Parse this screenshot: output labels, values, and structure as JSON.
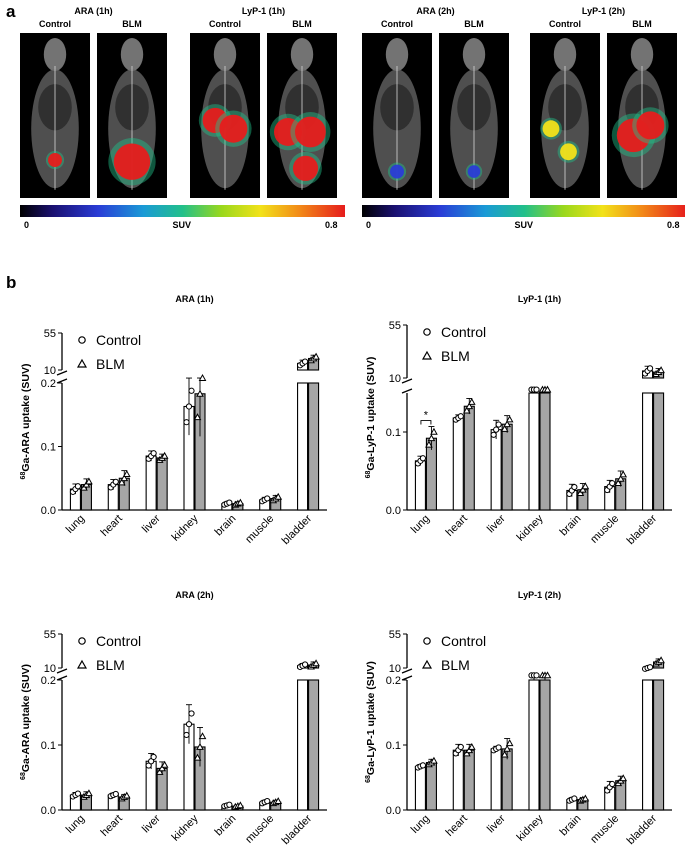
{
  "panel_a_label": "a",
  "panel_b_label": "b",
  "imaging": {
    "groups": [
      {
        "title": "ARA (1h)",
        "sub": [
          "Control",
          "BLM"
        ]
      },
      {
        "title": "LyP-1 (1h)",
        "sub": [
          "Control",
          "BLM"
        ]
      },
      {
        "title": "ARA (2h)",
        "sub": [
          "Control",
          "BLM"
        ]
      },
      {
        "title": "LyP-1 (2h)",
        "sub": [
          "Control",
          "BLM"
        ]
      }
    ],
    "colorbars": [
      {
        "min": "0",
        "label": "SUV",
        "max": "0.8"
      },
      {
        "min": "0",
        "label": "SUV",
        "max": "0.8"
      }
    ]
  },
  "colors": {
    "control_bar": "#ffffff",
    "blm_bar": "#a6a6a6",
    "stroke": "#000000"
  },
  "chart_data": [
    {
      "type": "bar",
      "title": "ARA (1h)",
      "ylabel_sup": "68",
      "ylabel": "Ga-ARA uptake (SUV)",
      "categories": [
        "lung",
        "heart",
        "liver",
        "kidney",
        "brain",
        "muscle",
        "bladder"
      ],
      "lower_ticks": [
        "0.0",
        "0.1",
        "0.2"
      ],
      "lower_range": [
        0,
        0.2
      ],
      "upper_ticks": [
        "10",
        "55"
      ],
      "upper_range": [
        10,
        55
      ],
      "legend": [
        "Control",
        "BLM"
      ],
      "series": [
        {
          "name": "Control",
          "values": [
            0.033,
            0.04,
            0.085,
            0.163,
            0.01,
            0.016,
            18
          ],
          "err": [
            0.008,
            0.008,
            0.008,
            0.045,
            0.003,
            0.004,
            4
          ]
        },
        {
          "name": "BLM",
          "values": [
            0.04,
            0.05,
            0.082,
            0.183,
            0.01,
            0.018,
            24
          ],
          "err": [
            0.009,
            0.012,
            0.006,
            0.067,
            0.003,
            0.005,
            4
          ]
        }
      ],
      "annotations": []
    },
    {
      "type": "bar",
      "title": "LyP-1 (1h)",
      "ylabel_sup": "68",
      "ylabel": "Ga-LyP-1 uptake (SUV)",
      "categories": [
        "lung",
        "heart",
        "liver",
        "kidney",
        "brain",
        "muscle",
        "bladder"
      ],
      "lower_ticks": [
        "0.0",
        "0.1"
      ],
      "lower_range": [
        0,
        0.15
      ],
      "upper_ticks": [
        "10",
        "55"
      ],
      "upper_range": [
        10,
        55
      ],
      "legend": [
        "Control",
        "BLM"
      ],
      "series": [
        {
          "name": "Control",
          "values": [
            0.063,
            0.118,
            0.103,
            0.165,
            0.025,
            0.03,
            16
          ],
          "err": [
            0.006,
            0.004,
            0.012,
            0.005,
            0.008,
            0.008,
            4
          ]
        },
        {
          "name": "BLM",
          "values": [
            0.092,
            0.133,
            0.11,
            0.165,
            0.026,
            0.04,
            15
          ],
          "err": [
            0.015,
            0.01,
            0.011,
            0.005,
            0.008,
            0.01,
            3
          ]
        }
      ],
      "annotations": [
        {
          "text": "*",
          "category": "lung"
        }
      ]
    },
    {
      "type": "bar",
      "title": "ARA (2h)",
      "ylabel_sup": "68",
      "ylabel": "Ga-ARA uptake (SUV)",
      "categories": [
        "lung",
        "heart",
        "liver",
        "kidney",
        "brain",
        "muscle",
        "bladder"
      ],
      "lower_ticks": [
        "0.0",
        "0.1",
        "0.2"
      ],
      "lower_range": [
        0,
        0.2
      ],
      "upper_ticks": [
        "10",
        "55"
      ],
      "upper_range": [
        10,
        55
      ],
      "legend": [
        "Control",
        "BLM"
      ],
      "series": [
        {
          "name": "Control",
          "values": [
            0.023,
            0.023,
            0.075,
            0.132,
            0.007,
            0.012,
            13
          ],
          "err": [
            0.004,
            0.003,
            0.012,
            0.03,
            0.002,
            0.003,
            3
          ]
        },
        {
          "name": "BLM",
          "values": [
            0.023,
            0.02,
            0.064,
            0.097,
            0.006,
            0.012,
            14
          ],
          "err": [
            0.005,
            0.004,
            0.01,
            0.03,
            0.002,
            0.003,
            4
          ]
        }
      ],
      "annotations": []
    },
    {
      "type": "bar",
      "title": "LyP-1 (2h)",
      "ylabel_sup": "68",
      "ylabel": "Ga-LyP-1 uptake (SUV)",
      "categories": [
        "lung",
        "heart",
        "liver",
        "kidney",
        "brain",
        "muscle",
        "bladder"
      ],
      "lower_ticks": [
        "0.0",
        "0.1",
        "0.2"
      ],
      "lower_range": [
        0,
        0.2
      ],
      "upper_ticks": [
        "10",
        "55"
      ],
      "upper_range": [
        10,
        55
      ],
      "legend": [
        "Control",
        "BLM"
      ],
      "series": [
        {
          "name": "Control",
          "values": [
            0.067,
            0.092,
            0.094,
            0.205,
            0.016,
            0.035,
            10
          ],
          "err": [
            0.003,
            0.009,
            0.004,
            0.005,
            0.003,
            0.009,
            2
          ]
        },
        {
          "name": "BLM",
          "values": [
            0.073,
            0.092,
            0.094,
            0.205,
            0.016,
            0.045,
            18
          ],
          "err": [
            0.005,
            0.009,
            0.016,
            0.005,
            0.003,
            0.007,
            4
          ]
        }
      ],
      "annotations": []
    }
  ]
}
